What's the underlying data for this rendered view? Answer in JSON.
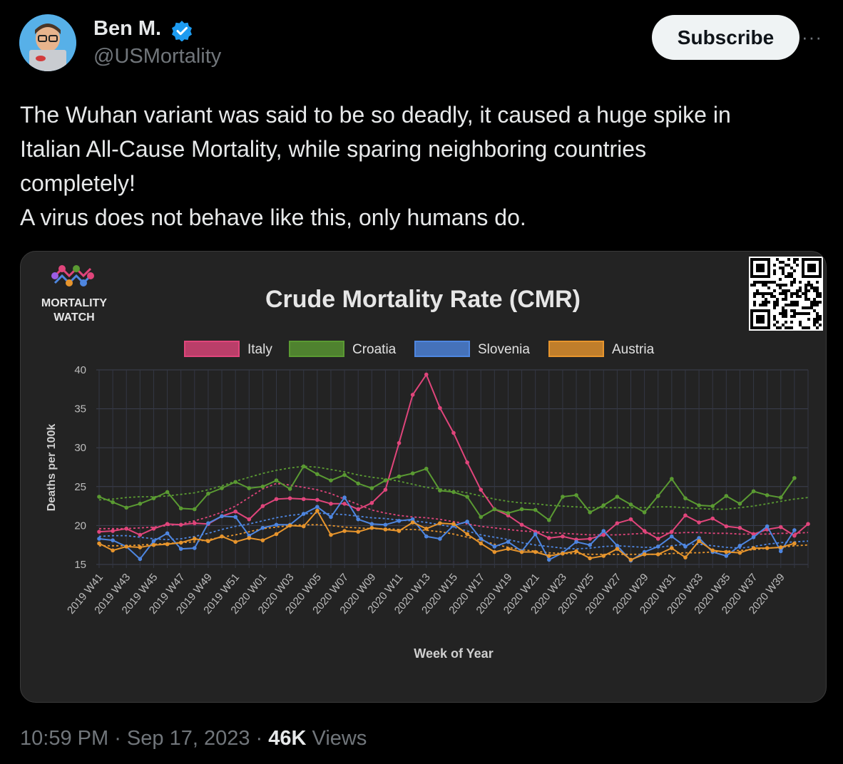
{
  "author": {
    "name": "Ben M.",
    "handle": "@USMortality",
    "subscribe_label": "Subscribe",
    "more_icon": "more-icon"
  },
  "tweet": {
    "lines": [
      "The Wuhan variant was said to be so deadly, it caused a huge spike in",
      "Italian All-Cause Mortality, while sparing neighboring countries",
      "completely!",
      "A virus does not behave like this, only humans do."
    ]
  },
  "footer": {
    "time": "10:59 PM",
    "sep1": " · ",
    "date": "Sep 17, 2023",
    "sep2": " · ",
    "views_count": "46K",
    "views_label": " Views"
  },
  "chart_brand": {
    "line1": "MORTALITY",
    "line2": "WATCH"
  },
  "chart_data": {
    "type": "line",
    "title": "Crude Mortality Rate (CMR)",
    "xlabel": "Week of Year",
    "ylabel": "Deaths per 100k",
    "ylim": [
      15,
      40
    ],
    "yticks": [
      15,
      20,
      25,
      30,
      35,
      40
    ],
    "grid": true,
    "legend_position": "top",
    "xticks": [
      "2019 W41",
      "2019 W43",
      "2019 W45",
      "2019 W47",
      "2019 W49",
      "2019 W51",
      "2020 W01",
      "2020 W03",
      "2020 W05",
      "2020 W07",
      "2020 W09",
      "2020 W11",
      "2020 W13",
      "2020 W15",
      "2020 W17",
      "2020 W19",
      "2020 W21",
      "2020 W23",
      "2020 W25",
      "2020 W27",
      "2020 W29",
      "2020 W31",
      "2020 W33",
      "2020 W35",
      "2020 W37",
      "2020 W39"
    ],
    "series": [
      {
        "name": "Italy",
        "color": "#e0457b",
        "values": [
          19.2,
          19.3,
          19.6,
          18.8,
          19.6,
          20.2,
          20.1,
          20.3,
          20.2,
          21.2,
          21.8,
          20.8,
          22.5,
          23.4,
          23.5,
          23.4,
          23.3,
          22.8,
          22.8,
          22.1,
          22.9,
          24.6,
          30.6,
          36.8,
          39.4,
          35.1,
          31.9,
          28.1,
          24.6,
          22.1,
          21.3,
          20.1,
          19.2,
          18.4,
          18.6,
          18.2,
          18.3,
          18.8,
          20.3,
          20.8,
          19.3,
          18.3,
          19.2,
          21.3,
          20.4,
          20.9,
          19.9,
          19.7,
          18.9,
          19.5,
          19.8,
          18.7,
          20.2
        ],
        "trend": [
          19.6,
          19.6,
          19.6,
          19.7,
          19.8,
          20.0,
          20.2,
          20.6,
          21.1,
          21.7,
          22.5,
          23.6,
          24.7,
          25.4,
          25.2,
          24.9,
          24.6,
          24.1,
          23.4,
          22.7,
          22.0,
          21.6,
          21.3,
          21.1,
          21.0,
          20.8,
          20.5,
          20.2,
          19.9,
          19.7,
          19.5,
          19.3,
          19.2,
          19.1,
          19.0,
          18.9,
          18.8,
          18.8,
          18.8,
          18.9,
          19.0,
          19.0,
          19.0,
          19.1,
          19.1,
          19.0,
          19.0,
          18.9,
          18.9,
          18.9,
          19.0,
          19.0,
          19.1
        ]
      },
      {
        "name": "Croatia",
        "color": "#5a9a32",
        "values": [
          23.7,
          23.0,
          22.3,
          22.8,
          23.5,
          24.3,
          22.2,
          22.1,
          24.1,
          24.8,
          25.6,
          24.8,
          25.0,
          25.8,
          24.7,
          27.6,
          26.6,
          25.8,
          26.5,
          25.4,
          24.8,
          25.8,
          26.3,
          26.7,
          27.3,
          24.5,
          24.3,
          23.7,
          21.1,
          22.1,
          21.6,
          22.1,
          22.0,
          20.7,
          23.7,
          23.9,
          21.7,
          22.6,
          23.7,
          22.7,
          21.7,
          23.8,
          26.0,
          23.5,
          22.6,
          22.5,
          23.8,
          22.8,
          24.4,
          23.9,
          23.6,
          26.1,
          null
        ],
        "trend": [
          23.3,
          23.4,
          23.6,
          23.7,
          23.7,
          23.8,
          24.0,
          24.2,
          24.6,
          25.1,
          25.7,
          26.2,
          26.7,
          27.1,
          27.4,
          27.6,
          27.5,
          27.2,
          26.9,
          26.5,
          26.2,
          26.0,
          25.7,
          25.3,
          24.9,
          24.7,
          24.5,
          24.2,
          23.8,
          23.4,
          23.1,
          22.9,
          22.8,
          22.6,
          22.5,
          22.4,
          22.3,
          22.3,
          22.3,
          22.3,
          22.3,
          22.4,
          22.4,
          22.3,
          22.2,
          22.1,
          22.1,
          22.3,
          22.5,
          22.8,
          23.1,
          23.4,
          23.6
        ]
      },
      {
        "name": "Slovenia",
        "color": "#4e86e0",
        "values": [
          18.3,
          18.1,
          17.3,
          15.7,
          18.0,
          19.0,
          17.0,
          17.1,
          20.3,
          21.2,
          21.1,
          18.7,
          19.7,
          20.1,
          20.1,
          21.5,
          22.4,
          21.1,
          23.6,
          20.8,
          20.2,
          20.1,
          20.6,
          20.8,
          18.6,
          18.3,
          20.0,
          20.5,
          18.3,
          17.3,
          17.9,
          16.7,
          18.9,
          15.6,
          16.5,
          17.9,
          17.5,
          19.3,
          17.4,
          15.5,
          16.6,
          17.3,
          18.6,
          17.3,
          18.4,
          16.6,
          16.1,
          17.4,
          18.5,
          19.9,
          16.7,
          19.4,
          null
        ],
        "trend": [
          18.6,
          18.7,
          18.7,
          18.5,
          18.3,
          18.2,
          18.3,
          18.6,
          19.0,
          19.5,
          19.9,
          20.2,
          20.6,
          21.0,
          21.3,
          21.5,
          21.6,
          21.5,
          21.4,
          21.2,
          21.0,
          20.9,
          20.7,
          20.6,
          20.4,
          20.1,
          19.8,
          19.3,
          18.8,
          18.5,
          18.2,
          17.8,
          17.5,
          17.3,
          17.1,
          17.0,
          17.1,
          17.3,
          17.4,
          17.3,
          17.2,
          17.2,
          17.4,
          17.6,
          17.6,
          17.4,
          17.2,
          17.1,
          17.3,
          17.6,
          17.8,
          17.9,
          18.0
        ]
      },
      {
        "name": "Austria",
        "color": "#e7952d",
        "values": [
          17.7,
          16.8,
          17.3,
          17.2,
          17.5,
          17.6,
          17.8,
          18.3,
          18.0,
          18.6,
          17.9,
          18.4,
          18.1,
          18.9,
          20.0,
          19.9,
          21.9,
          18.8,
          19.3,
          19.2,
          19.7,
          19.5,
          19.3,
          20.4,
          19.6,
          20.3,
          20.2,
          18.9,
          17.7,
          16.6,
          17.0,
          16.6,
          16.6,
          16.1,
          16.4,
          16.7,
          15.8,
          16.1,
          17.0,
          15.6,
          16.3,
          16.3,
          17.1,
          15.9,
          18.0,
          16.8,
          16.6,
          16.5,
          17.1,
          17.1,
          17.2,
          17.7,
          null
        ],
        "trend": [
          17.4,
          17.4,
          17.4,
          17.5,
          17.6,
          17.7,
          17.8,
          17.9,
          18.2,
          18.5,
          18.8,
          19.2,
          19.6,
          19.8,
          20.0,
          20.1,
          20.1,
          20.0,
          19.8,
          19.7,
          19.6,
          19.6,
          19.5,
          19.5,
          19.4,
          19.2,
          18.9,
          18.5,
          18.1,
          17.6,
          17.2,
          16.9,
          16.7,
          16.5,
          16.4,
          16.4,
          16.3,
          16.3,
          16.3,
          16.3,
          16.3,
          16.3,
          16.4,
          16.5,
          16.5,
          16.6,
          16.7,
          16.8,
          16.9,
          17.1,
          17.2,
          17.4,
          17.5
        ]
      }
    ]
  }
}
